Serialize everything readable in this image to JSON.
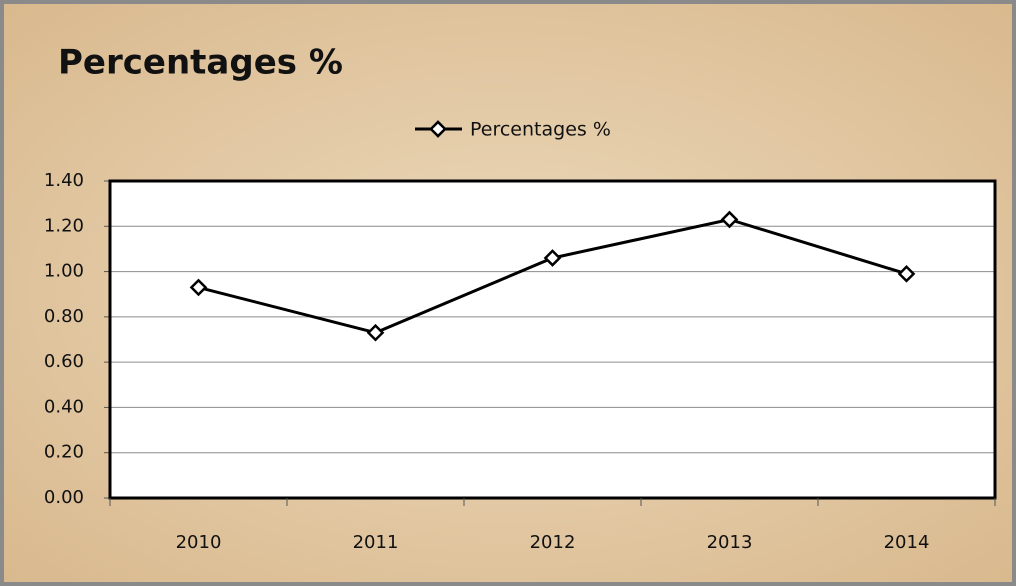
{
  "chart_data": {
    "type": "line",
    "title": "Percentages %",
    "categories": [
      "2010",
      "2011",
      "2012",
      "2013",
      "2014"
    ],
    "series": [
      {
        "name": "Percentages %",
        "color": "#000000",
        "values": [
          0.93,
          0.73,
          1.06,
          1.23,
          0.99
        ]
      }
    ],
    "ylim": [
      0,
      1.4
    ],
    "yticks": [
      {
        "value": 0,
        "label": "0.00"
      },
      {
        "value": 0.2,
        "label": "0.20"
      },
      {
        "value": 0.4,
        "label": "0.40"
      },
      {
        "value": 0.6,
        "label": "0.60"
      },
      {
        "value": 0.8,
        "label": "0.80"
      },
      {
        "value": 1,
        "label": "1.00"
      },
      {
        "value": 1.2,
        "label": "1.20"
      },
      {
        "value": 1.4,
        "label": "1.40"
      }
    ],
    "grid": true,
    "legend": "top"
  }
}
